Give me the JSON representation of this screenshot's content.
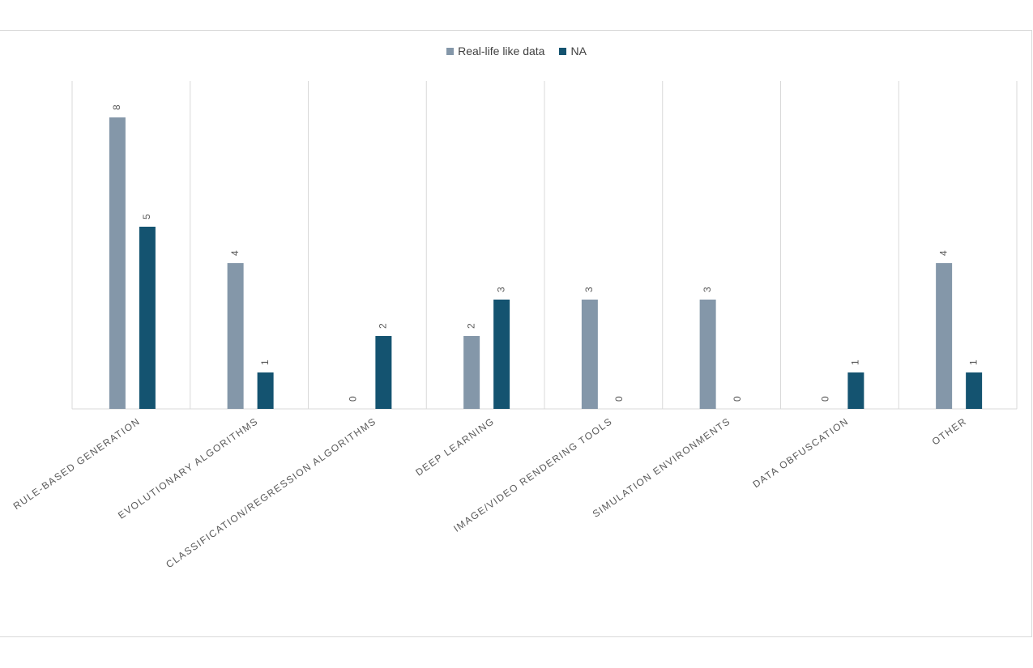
{
  "chart_data": {
    "type": "bar",
    "categories": [
      "RULE-BASED GENERATION",
      "EVOLUTIONARY ALGORITHMS",
      "CLASSIFICATION/REGRESSION ALGORITHMS",
      "DEEP LEARNING",
      "IMAGE/VIDEO RENDERING TOOLS",
      "SIMULATION ENVIRONMENTS",
      "DATA OBFUSCATION",
      "OTHER"
    ],
    "series": [
      {
        "name": "Real-life like data",
        "color": "#8497a9",
        "values": [
          8,
          4,
          0,
          2,
          3,
          3,
          0,
          4
        ]
      },
      {
        "name": "NA",
        "color": "#145370",
        "values": [
          5,
          1,
          2,
          3,
          0,
          0,
          1,
          1
        ]
      }
    ],
    "ylim": [
      0,
      9
    ],
    "grid": "vertical category separators",
    "legend_position": "top-center",
    "data_labels": true
  }
}
